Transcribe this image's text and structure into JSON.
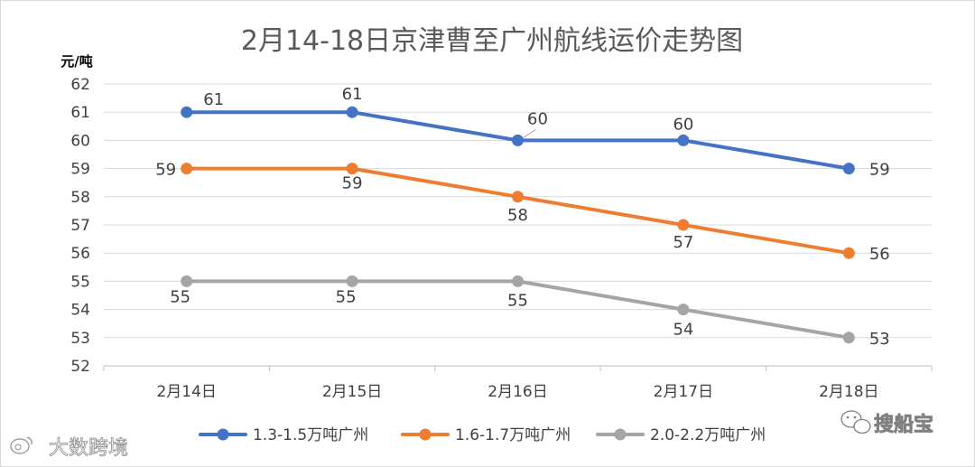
{
  "chart_data": {
    "type": "line",
    "title": "2月14-18日京津曹至广州航线运价走势图",
    "ylabel": "元/吨",
    "xlabel": "",
    "categories": [
      "2月14日",
      "2月15日",
      "2月16日",
      "2月17日",
      "2月18日"
    ],
    "ylim": [
      52,
      62
    ],
    "yticks": [
      52,
      53,
      54,
      55,
      56,
      57,
      58,
      59,
      60,
      61,
      62
    ],
    "grid": true,
    "legend_position": "bottom",
    "series": [
      {
        "name": "1.3-1.5万吨广州",
        "color": "#4472c4",
        "values": [
          61,
          61,
          60,
          60,
          59
        ]
      },
      {
        "name": "1.6-1.7万吨广州",
        "color": "#ed7d31",
        "values": [
          59,
          59,
          58,
          57,
          56
        ]
      },
      {
        "name": "2.0-2.2万吨广州",
        "color": "#a5a5a5",
        "values": [
          55,
          55,
          55,
          54,
          53
        ]
      }
    ]
  },
  "watermarks": {
    "left": "大数跨境",
    "right": "搜船宝"
  }
}
